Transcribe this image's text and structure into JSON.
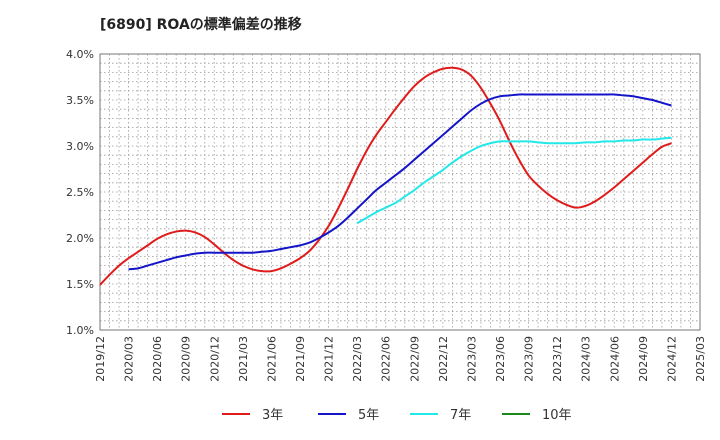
{
  "chart_data": {
    "type": "line",
    "title": "[6890]  ROAの標準偏差の推移",
    "xlabel": "",
    "ylabel": "",
    "ylim": [
      1.0,
      4.0
    ],
    "grid": true,
    "legend_position": "bottom",
    "y_ticks": [
      "1.0%",
      "1.5%",
      "2.0%",
      "2.5%",
      "3.0%",
      "3.5%",
      "4.0%"
    ],
    "y_tick_values": [
      1.0,
      1.5,
      2.0,
      2.5,
      3.0,
      3.5,
      4.0
    ],
    "x_ticks": [
      "2019/12",
      "2020/03",
      "2020/06",
      "2020/09",
      "2020/12",
      "2021/03",
      "2021/06",
      "2021/09",
      "2021/12",
      "2022/03",
      "2022/06",
      "2022/09",
      "2022/12",
      "2023/03",
      "2023/06",
      "2023/09",
      "2023/12",
      "2024/03",
      "2024/06",
      "2024/09",
      "2024/12",
      "2025/03"
    ],
    "series": [
      {
        "name": "3年",
        "color": "#e01b1b",
        "points": [
          [
            "2019/12",
            1.49
          ],
          [
            "2020/01",
            1.6
          ],
          [
            "2020/02",
            1.7
          ],
          [
            "2020/03",
            1.78
          ],
          [
            "2020/04",
            1.85
          ],
          [
            "2020/05",
            1.92
          ],
          [
            "2020/06",
            1.99
          ],
          [
            "2020/07",
            2.04
          ],
          [
            "2020/08",
            2.07
          ],
          [
            "2020/09",
            2.08
          ],
          [
            "2020/10",
            2.06
          ],
          [
            "2020/11",
            2.01
          ],
          [
            "2020/12",
            1.93
          ],
          [
            "2021/01",
            1.84
          ],
          [
            "2021/02",
            1.76
          ],
          [
            "2021/03",
            1.7
          ],
          [
            "2021/04",
            1.66
          ],
          [
            "2021/05",
            1.64
          ],
          [
            "2021/06",
            1.64
          ],
          [
            "2021/07",
            1.67
          ],
          [
            "2021/08",
            1.72
          ],
          [
            "2021/09",
            1.78
          ],
          [
            "2021/10",
            1.86
          ],
          [
            "2021/11",
            1.98
          ],
          [
            "2021/12",
            2.13
          ],
          [
            "2022/01",
            2.32
          ],
          [
            "2022/02",
            2.53
          ],
          [
            "2022/03",
            2.75
          ],
          [
            "2022/04",
            2.95
          ],
          [
            "2022/05",
            3.12
          ],
          [
            "2022/06",
            3.26
          ],
          [
            "2022/07",
            3.4
          ],
          [
            "2022/08",
            3.53
          ],
          [
            "2022/09",
            3.65
          ],
          [
            "2022/10",
            3.74
          ],
          [
            "2022/11",
            3.8
          ],
          [
            "2022/12",
            3.84
          ],
          [
            "2023/01",
            3.85
          ],
          [
            "2023/02",
            3.83
          ],
          [
            "2023/03",
            3.76
          ],
          [
            "2023/04",
            3.63
          ],
          [
            "2023/05",
            3.46
          ],
          [
            "2023/06",
            3.27
          ],
          [
            "2023/07",
            3.05
          ],
          [
            "2023/08",
            2.85
          ],
          [
            "2023/09",
            2.68
          ],
          [
            "2023/10",
            2.57
          ],
          [
            "2023/11",
            2.48
          ],
          [
            "2023/12",
            2.41
          ],
          [
            "2024/01",
            2.36
          ],
          [
            "2024/02",
            2.33
          ],
          [
            "2024/03",
            2.35
          ],
          [
            "2024/04",
            2.4
          ],
          [
            "2024/05",
            2.47
          ],
          [
            "2024/06",
            2.55
          ],
          [
            "2024/07",
            2.64
          ],
          [
            "2024/08",
            2.73
          ],
          [
            "2024/09",
            2.82
          ],
          [
            "2024/10",
            2.91
          ],
          [
            "2024/11",
            2.99
          ],
          [
            "2024/12",
            3.03
          ]
        ]
      },
      {
        "name": "5年",
        "color": "#1414c8",
        "points": [
          [
            "2020/03",
            1.66
          ],
          [
            "2020/04",
            1.67
          ],
          [
            "2020/05",
            1.7
          ],
          [
            "2020/06",
            1.73
          ],
          [
            "2020/07",
            1.76
          ],
          [
            "2020/08",
            1.79
          ],
          [
            "2020/09",
            1.81
          ],
          [
            "2020/10",
            1.83
          ],
          [
            "2020/11",
            1.84
          ],
          [
            "2020/12",
            1.84
          ],
          [
            "2021/01",
            1.84
          ],
          [
            "2021/02",
            1.84
          ],
          [
            "2021/03",
            1.84
          ],
          [
            "2021/04",
            1.84
          ],
          [
            "2021/05",
            1.85
          ],
          [
            "2021/06",
            1.86
          ],
          [
            "2021/07",
            1.88
          ],
          [
            "2021/08",
            1.9
          ],
          [
            "2021/09",
            1.92
          ],
          [
            "2021/10",
            1.95
          ],
          [
            "2021/11",
            2.0
          ],
          [
            "2021/12",
            2.06
          ],
          [
            "2022/01",
            2.13
          ],
          [
            "2022/02",
            2.22
          ],
          [
            "2022/03",
            2.32
          ],
          [
            "2022/04",
            2.42
          ],
          [
            "2022/05",
            2.52
          ],
          [
            "2022/06",
            2.6
          ],
          [
            "2022/07",
            2.68
          ],
          [
            "2022/08",
            2.76
          ],
          [
            "2022/09",
            2.85
          ],
          [
            "2022/10",
            2.94
          ],
          [
            "2022/11",
            3.03
          ],
          [
            "2022/12",
            3.12
          ],
          [
            "2023/01",
            3.21
          ],
          [
            "2023/02",
            3.3
          ],
          [
            "2023/03",
            3.39
          ],
          [
            "2023/04",
            3.46
          ],
          [
            "2023/05",
            3.51
          ],
          [
            "2023/06",
            3.54
          ],
          [
            "2023/07",
            3.55
          ],
          [
            "2023/08",
            3.56
          ],
          [
            "2023/09",
            3.56
          ],
          [
            "2023/10",
            3.56
          ],
          [
            "2023/11",
            3.56
          ],
          [
            "2023/12",
            3.56
          ],
          [
            "2024/01",
            3.56
          ],
          [
            "2024/02",
            3.56
          ],
          [
            "2024/03",
            3.56
          ],
          [
            "2024/04",
            3.56
          ],
          [
            "2024/05",
            3.56
          ],
          [
            "2024/06",
            3.56
          ],
          [
            "2024/07",
            3.55
          ],
          [
            "2024/08",
            3.54
          ],
          [
            "2024/09",
            3.52
          ],
          [
            "2024/10",
            3.5
          ],
          [
            "2024/11",
            3.47
          ],
          [
            "2024/12",
            3.44
          ]
        ]
      },
      {
        "name": "7年",
        "color": "#22e8e8",
        "points": [
          [
            "2022/03",
            2.16
          ],
          [
            "2022/04",
            2.22
          ],
          [
            "2022/05",
            2.28
          ],
          [
            "2022/06",
            2.33
          ],
          [
            "2022/07",
            2.38
          ],
          [
            "2022/08",
            2.45
          ],
          [
            "2022/09",
            2.52
          ],
          [
            "2022/10",
            2.6
          ],
          [
            "2022/11",
            2.67
          ],
          [
            "2022/12",
            2.74
          ],
          [
            "2023/01",
            2.82
          ],
          [
            "2023/02",
            2.89
          ],
          [
            "2023/03",
            2.95
          ],
          [
            "2023/04",
            3.0
          ],
          [
            "2023/05",
            3.03
          ],
          [
            "2023/06",
            3.05
          ],
          [
            "2023/07",
            3.05
          ],
          [
            "2023/08",
            3.05
          ],
          [
            "2023/09",
            3.05
          ],
          [
            "2023/10",
            3.04
          ],
          [
            "2023/11",
            3.03
          ],
          [
            "2023/12",
            3.03
          ],
          [
            "2024/01",
            3.03
          ],
          [
            "2024/02",
            3.03
          ],
          [
            "2024/03",
            3.04
          ],
          [
            "2024/04",
            3.04
          ],
          [
            "2024/05",
            3.05
          ],
          [
            "2024/06",
            3.05
          ],
          [
            "2024/07",
            3.06
          ],
          [
            "2024/08",
            3.06
          ],
          [
            "2024/09",
            3.07
          ],
          [
            "2024/10",
            3.07
          ],
          [
            "2024/11",
            3.08
          ],
          [
            "2024/12",
            3.09
          ]
        ]
      },
      {
        "name": "10年",
        "color": "#1a8a1a",
        "points": []
      }
    ]
  }
}
